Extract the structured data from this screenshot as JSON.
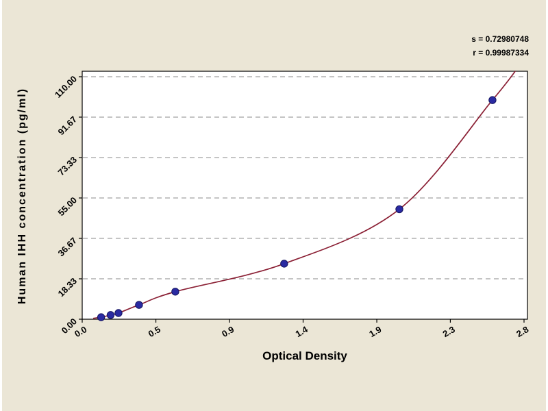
{
  "chart_data": {
    "type": "scatter",
    "title": "",
    "xlabel": "Optical Density",
    "ylabel": "Human IHH concentration (pg/ml)",
    "xlim": [
      0,
      2.8
    ],
    "ylim": [
      0,
      110
    ],
    "x_ticks": [
      0,
      0.467,
      0.933,
      1.4,
      1.867,
      2.333,
      2.8
    ],
    "x_tick_labels": [
      "0.0",
      "0.5",
      "0.9",
      "1.4",
      "1.9",
      "2.3",
      "2.8"
    ],
    "y_ticks": [
      0,
      18.33,
      36.67,
      55,
      73.33,
      91.67,
      110
    ],
    "y_tick_labels": [
      "0.00",
      "18.33",
      "36.67",
      "55.00",
      "73.33",
      "91.67",
      "110.00"
    ],
    "grid": "horizontal-dashed",
    "legend": "none",
    "points": [
      {
        "x": 0.12,
        "y": 0.9
      },
      {
        "x": 0.18,
        "y": 1.9
      },
      {
        "x": 0.23,
        "y": 2.8
      },
      {
        "x": 0.36,
        "y": 6.5
      },
      {
        "x": 0.59,
        "y": 12.5
      },
      {
        "x": 1.28,
        "y": 25.2
      },
      {
        "x": 2.01,
        "y": 49.9
      },
      {
        "x": 2.6,
        "y": 99.4
      }
    ],
    "curve_points": [
      [
        0.07,
        0.4
      ],
      [
        0.12,
        0.9
      ],
      [
        0.18,
        1.9
      ],
      [
        0.23,
        2.8
      ],
      [
        0.36,
        6.5
      ],
      [
        0.59,
        12.5
      ],
      [
        1.28,
        25.2
      ],
      [
        2.01,
        49.9
      ],
      [
        2.6,
        99.4
      ],
      [
        2.76,
        114
      ]
    ],
    "annotations": [
      "s = 0.72980748",
      "r = 0.99987334"
    ],
    "colors": {
      "curve": "#8b2035",
      "point": "#2a2aa2",
      "point_edge": "#15155e",
      "grid": "#8a8a8a",
      "axis": "#000000",
      "plot_bg": "#ffffff",
      "panel_bg": "#ebe6d6",
      "text": "#000000"
    }
  }
}
